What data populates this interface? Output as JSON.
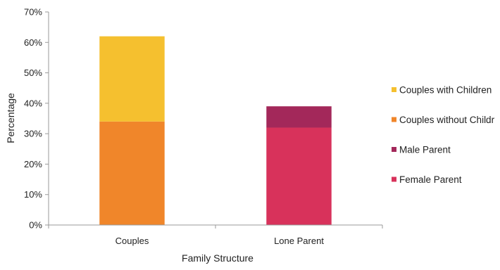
{
  "chart_data": {
    "type": "bar",
    "stacked": true,
    "title": "",
    "xlabel": "Family Structure",
    "ylabel": "Percentage",
    "categories": [
      "Couples",
      "Lone Parent"
    ],
    "series": [
      {
        "name": "Couples without Childr",
        "color": "#f0862a",
        "values": [
          34,
          0
        ]
      },
      {
        "name": "Couples with Children",
        "color": "#f5c02f",
        "values": [
          28,
          0
        ]
      },
      {
        "name": "Female Parent",
        "color": "#d8325b",
        "values": [
          0,
          32
        ]
      },
      {
        "name": "Male Parent",
        "color": "#a3285a",
        "values": [
          0,
          7
        ]
      }
    ],
    "legend_order": [
      "Couples with Children",
      "Couples without Childr",
      "Male Parent",
      "Female Parent"
    ],
    "legend_position": "right",
    "ylim": [
      0,
      70
    ],
    "yticks": [
      0,
      10,
      20,
      30,
      40,
      50,
      60,
      70
    ],
    "ytick_labels": [
      "0%",
      "10%",
      "20%",
      "30%",
      "40%",
      "50%",
      "60%",
      "70%"
    ],
    "grid": false
  }
}
